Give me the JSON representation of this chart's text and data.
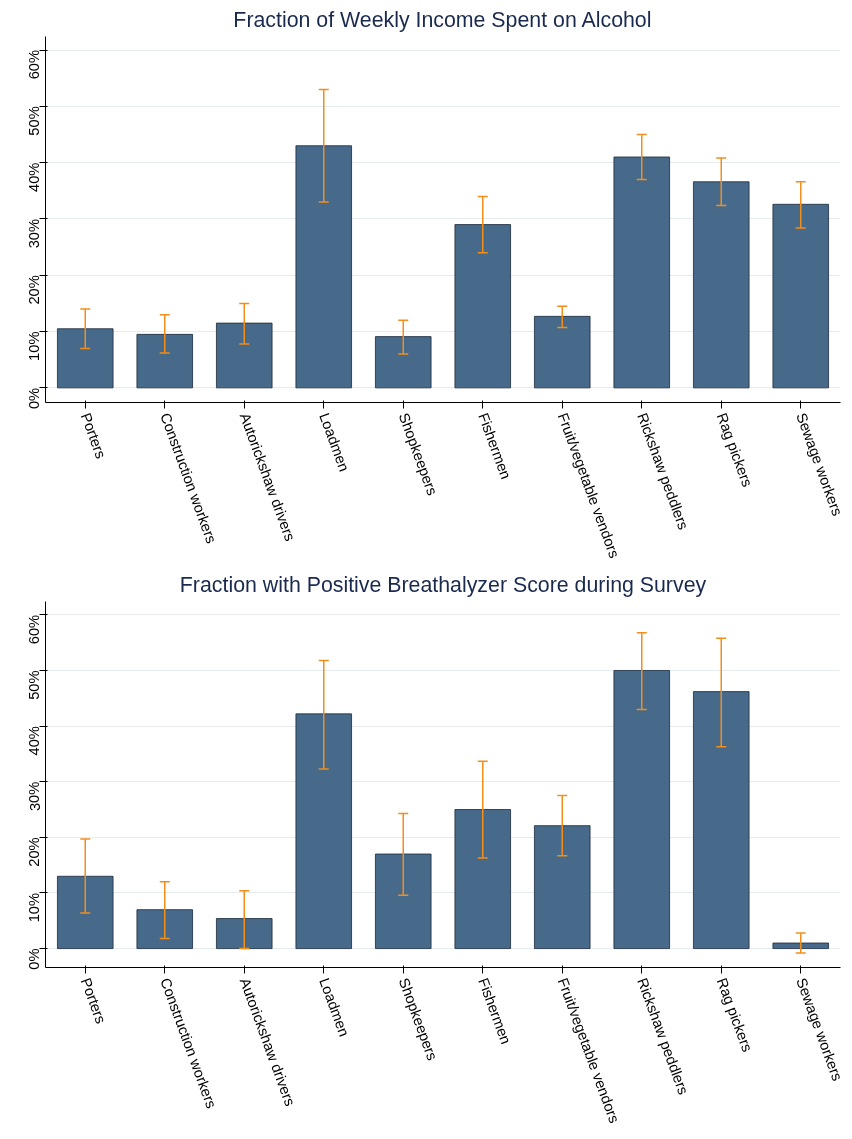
{
  "chart_data": [
    {
      "type": "bar",
      "title": "Fraction of Weekly Income Spent on Alcohol",
      "categories": [
        "Porters",
        "Construction workers",
        "Autorickshaw drivers",
        "Loadmen",
        "Shopkeepers",
        "Fishermen",
        "Fruit/vegetable vendors",
        "Rickshaw peddlers",
        "Rag pickers",
        "Sewage workers"
      ],
      "values": [
        10.5,
        9.5,
        11.5,
        43,
        9.1,
        29,
        12.7,
        41,
        36.6,
        32.6
      ],
      "errors": [
        [
          7,
          14
        ],
        [
          6.2,
          13
        ],
        [
          7.8,
          15
        ],
        [
          33,
          53
        ],
        [
          6,
          12
        ],
        [
          24,
          34
        ],
        [
          10.7,
          14.5
        ],
        [
          37,
          45
        ],
        [
          32.4,
          40.8
        ],
        [
          28.4,
          36.6
        ]
      ],
      "color": "#486a8a",
      "ylim": [
        -2.6,
        62.4
      ],
      "yticks": [
        {
          "value": 0,
          "label": "0%"
        },
        {
          "value": 10,
          "label": "10%"
        },
        {
          "value": 20,
          "label": "20%"
        },
        {
          "value": 30,
          "label": "30%"
        },
        {
          "value": 40,
          "label": "40%"
        },
        {
          "value": 50,
          "label": "50%"
        },
        {
          "value": 60,
          "label": "60%"
        }
      ],
      "grid": "y"
    },
    {
      "type": "bar",
      "title": "Fraction with Positive Breathalyzer Score during Survey",
      "categories": [
        "Porters",
        "Construction workers",
        "Autorickshaw drivers",
        "Loadmen",
        "Shopkeepers",
        "Fishermen",
        "Fruit/vegetable vendors",
        "Rickshaw peddlers",
        "Rag pickers",
        "Sewage workers"
      ],
      "values": [
        13,
        7,
        5.4,
        42.2,
        17,
        25,
        22.1,
        50,
        46.2,
        1
      ],
      "errors": [
        [
          6.4,
          19.7
        ],
        [
          1.8,
          12
        ],
        [
          0,
          10.4
        ],
        [
          32.3,
          51.8
        ],
        [
          9.6,
          24.3
        ],
        [
          16.3,
          33.7
        ],
        [
          16.7,
          27.5
        ],
        [
          43,
          56.8
        ],
        [
          36.3,
          55.8
        ],
        [
          -0.8,
          2.8
        ]
      ],
      "color": "#486a8a",
      "ylim": [
        -3.4,
        62.4
      ],
      "yticks": [
        {
          "value": 0,
          "label": "0%"
        },
        {
          "value": 10,
          "label": "10%"
        },
        {
          "value": 20,
          "label": "20%"
        },
        {
          "value": 30,
          "label": "30%"
        },
        {
          "value": 40,
          "label": "40%"
        },
        {
          "value": 50,
          "label": "50%"
        },
        {
          "value": 60,
          "label": "60%"
        }
      ],
      "grid": "y"
    }
  ]
}
